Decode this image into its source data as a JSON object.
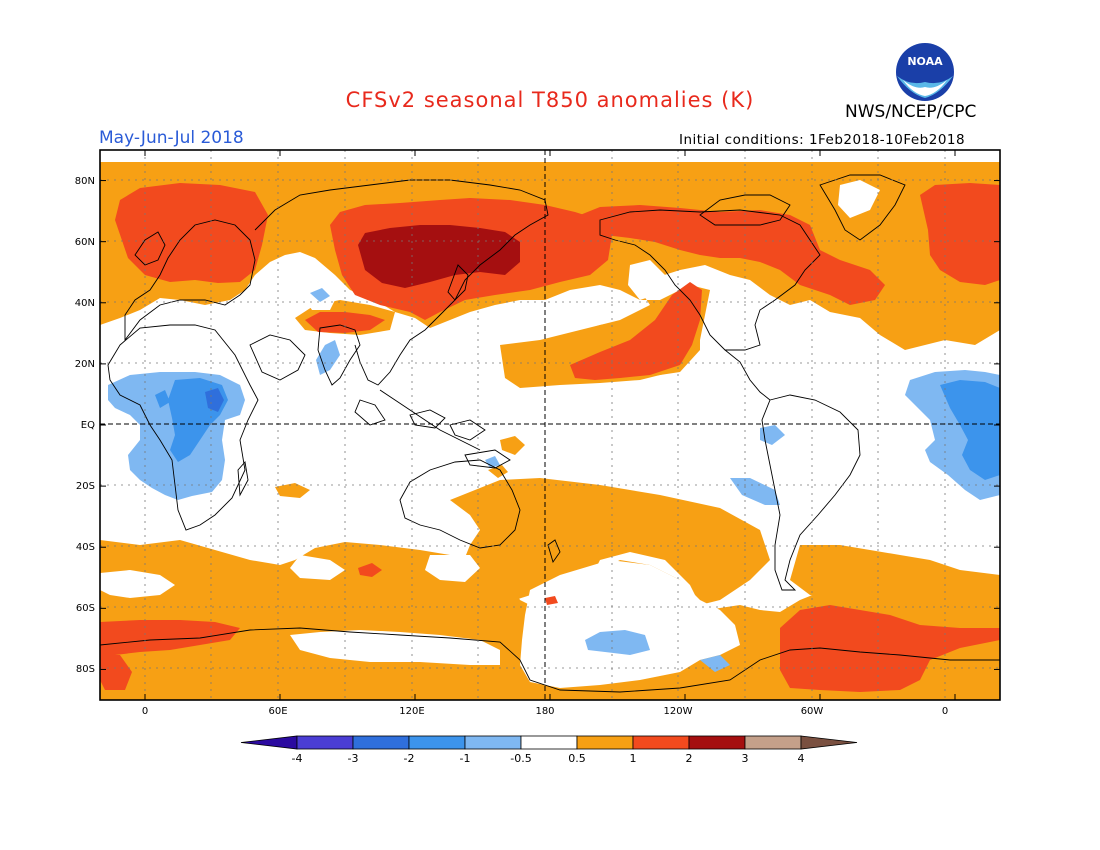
{
  "header": {
    "title": "CFSv2 seasonal T850 anomalies (K)",
    "period": "May-Jun-Jul 2018",
    "initial_conditions": "Initial conditions: 1Feb2018-10Feb2018",
    "agency": "NWS/NCEP/CPC",
    "logo_text": "NOAA"
  },
  "colors": {
    "title": "#e8291c",
    "period": "#2a5bd7",
    "text": "#000000"
  },
  "map": {
    "lat_labels": [
      "80N",
      "60N",
      "40N",
      "20N",
      "EQ",
      "20S",
      "40S",
      "60S",
      "80S"
    ],
    "lon_labels": [
      "0",
      "60E",
      "120E",
      "180",
      "120W",
      "60W",
      "0"
    ],
    "lat_range": [
      -90,
      90
    ],
    "lon_range": [
      -20,
      380
    ],
    "grid": "dotted",
    "reference_lines": [
      "equator",
      "dateline"
    ]
  },
  "colorbar": {
    "colors": [
      "#2b0aa0",
      "#4a3dd4",
      "#2f6fdc",
      "#3c94ec",
      "#7fb8f2",
      "#ffffff",
      "#f7a014",
      "#f24a1e",
      "#a50f10",
      "#c4a08a",
      "#7a5040"
    ],
    "labels": [
      "-4",
      "-3",
      "-2",
      "-1",
      "-0.5",
      "0.5",
      "1",
      "2",
      "3",
      "4"
    ]
  }
}
